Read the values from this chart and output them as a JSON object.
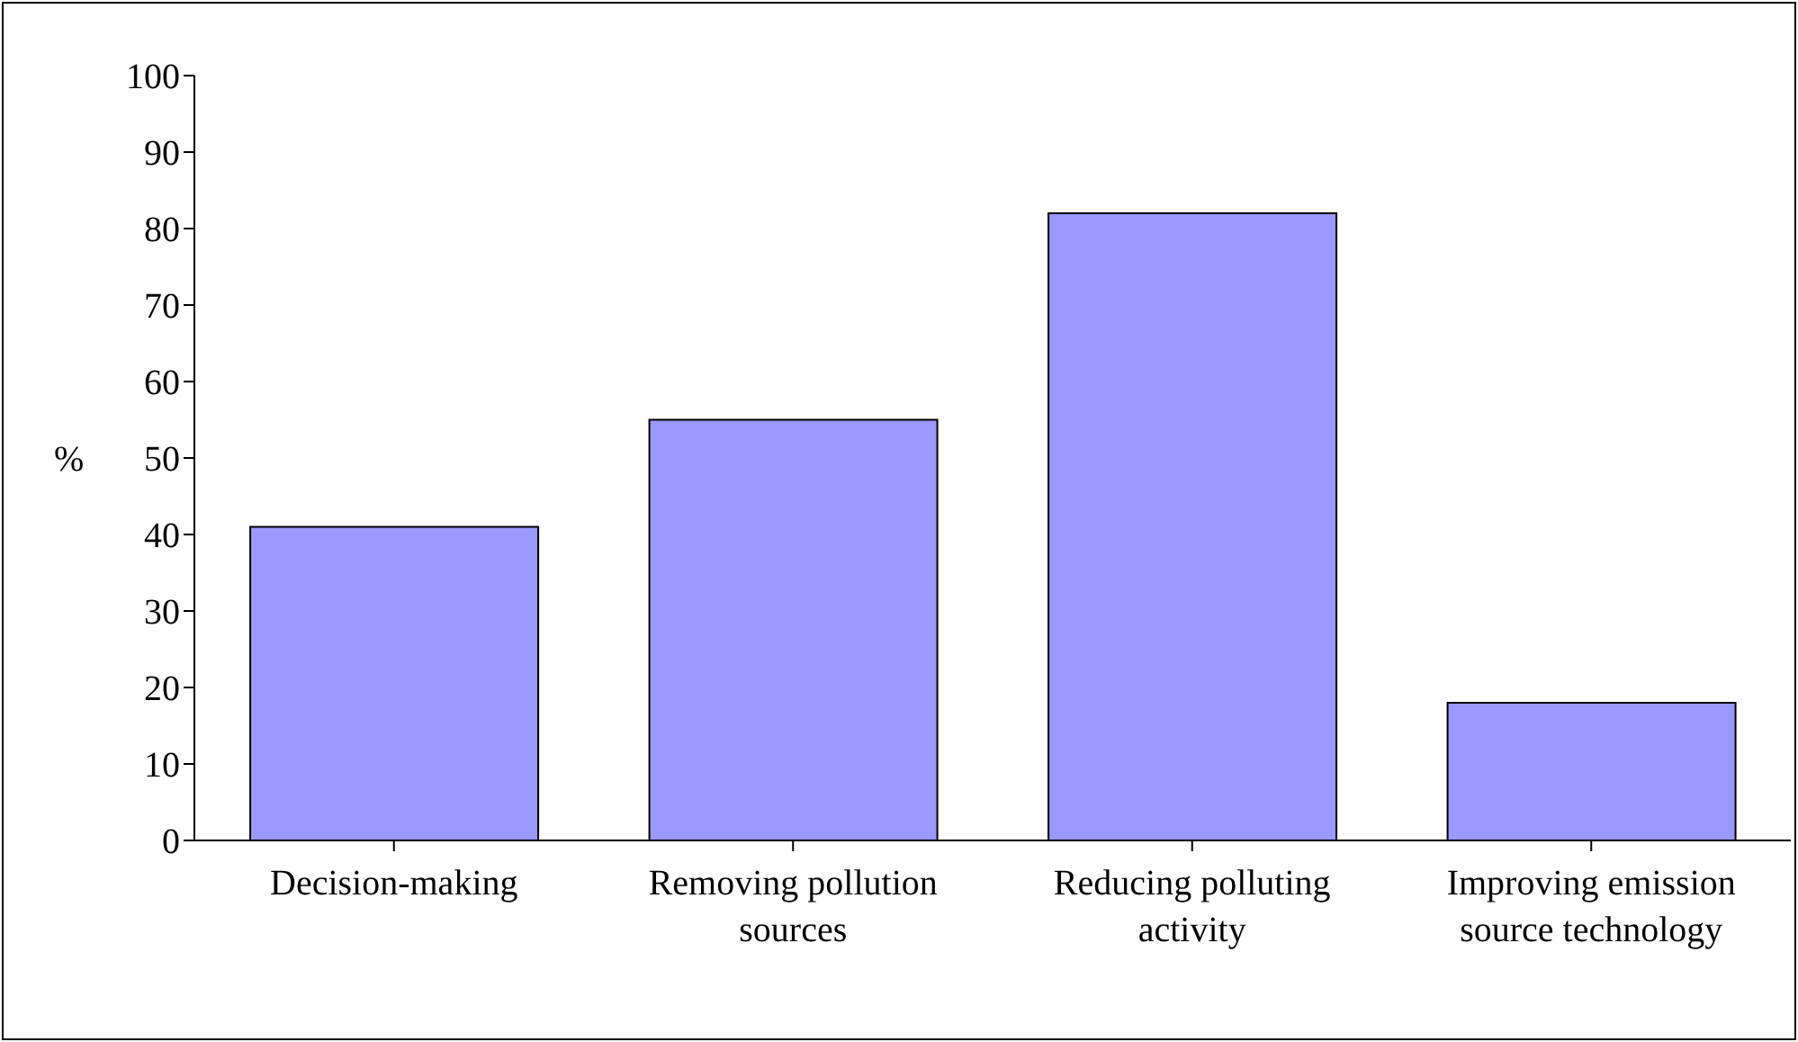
{
  "chart_data": {
    "type": "bar",
    "ylabel": "%",
    "categories": [
      "Decision-making",
      "Removing pollution sources",
      "Reducing polluting activity",
      "Improving emission source technology"
    ],
    "values": [
      41,
      55,
      82,
      18
    ],
    "color": "#9999ff",
    "ylim": [
      0,
      100
    ],
    "yticks": [
      0,
      10,
      20,
      30,
      40,
      50,
      60,
      70,
      80,
      90,
      100
    ],
    "grid": false,
    "legend": false
  }
}
